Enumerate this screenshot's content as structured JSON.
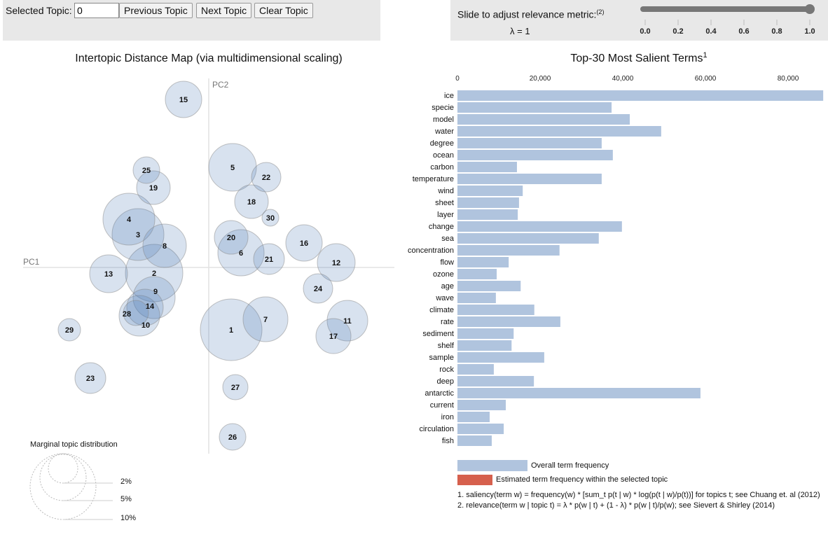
{
  "controls": {
    "selected_topic_label": "Selected Topic:",
    "selected_topic_value": "0",
    "previous_label": "Previous Topic",
    "next_label": "Next Topic",
    "clear_label": "Clear Topic",
    "slider_label": "Slide to adjust relevance metric:",
    "slider_footnote": "(2)",
    "lambda_text": "λ = 1",
    "lambda_value": 1,
    "slider_ticks": [
      "0.0",
      "0.2",
      "0.4",
      "0.6",
      "0.8",
      "1.0"
    ]
  },
  "map": {
    "title": "Intertopic Distance Map (via multidimensional scaling)",
    "x_axis": "PC1",
    "y_axis": "PC2",
    "topics": [
      "1",
      "2",
      "3",
      "4",
      "5",
      "6",
      "7",
      "8",
      "9",
      "10",
      "11",
      "12",
      "13",
      "14",
      "15",
      "16",
      "17",
      "18",
      "19",
      "20",
      "21",
      "22",
      "23",
      "24",
      "25",
      "26",
      "27",
      "28",
      "29",
      "30"
    ],
    "legend_title": "Marginal topic distribution",
    "legend_labels": [
      "2%",
      "5%",
      "10%"
    ]
  },
  "chart_data": {
    "type": "bar",
    "title": "Top-30 Most Salient Terms",
    "title_footnote": "1",
    "xlim": [
      0,
      88500
    ],
    "ticks": [
      "0",
      "20,000",
      "40,000",
      "60,000",
      "80,000"
    ],
    "tick_values": [
      0,
      20000,
      40000,
      60000,
      80000
    ],
    "categories": [
      "ice",
      "specie",
      "model",
      "water",
      "degree",
      "ocean",
      "carbon",
      "temperature",
      "wind",
      "sheet",
      "layer",
      "change",
      "sea",
      "concentration",
      "flow",
      "ozone",
      "age",
      "wave",
      "climate",
      "rate",
      "sediment",
      "shelf",
      "sample",
      "rock",
      "deep",
      "antarctic",
      "current",
      "iron",
      "circulation",
      "fish"
    ],
    "series": [
      {
        "name": "Overall term frequency",
        "color": "#b0c4de",
        "values": [
          88500,
          37300,
          41700,
          49300,
          34900,
          37600,
          14400,
          34900,
          15800,
          14900,
          14600,
          39800,
          34200,
          24700,
          12400,
          9500,
          15300,
          9300,
          18600,
          24900,
          13600,
          13100,
          21000,
          8800,
          18500,
          58800,
          11700,
          7800,
          11200,
          8300
        ]
      }
    ],
    "legend": [
      "Overall term frequency",
      "Estimated term frequency within the selected topic"
    ],
    "legend_colors": [
      "#b0c4de",
      "#d6604d"
    ],
    "notes": [
      "1. saliency(term w) = frequency(w) * [sum_t p(t | w) * log(p(t | w)/p(t))] for topics t; see Chuang et. al (2012)",
      "2. relevance(term w | topic t) = λ * p(w | t) + (1 - λ) * p(w | t)/p(w); see Sievert & Shirley (2014)"
    ]
  }
}
